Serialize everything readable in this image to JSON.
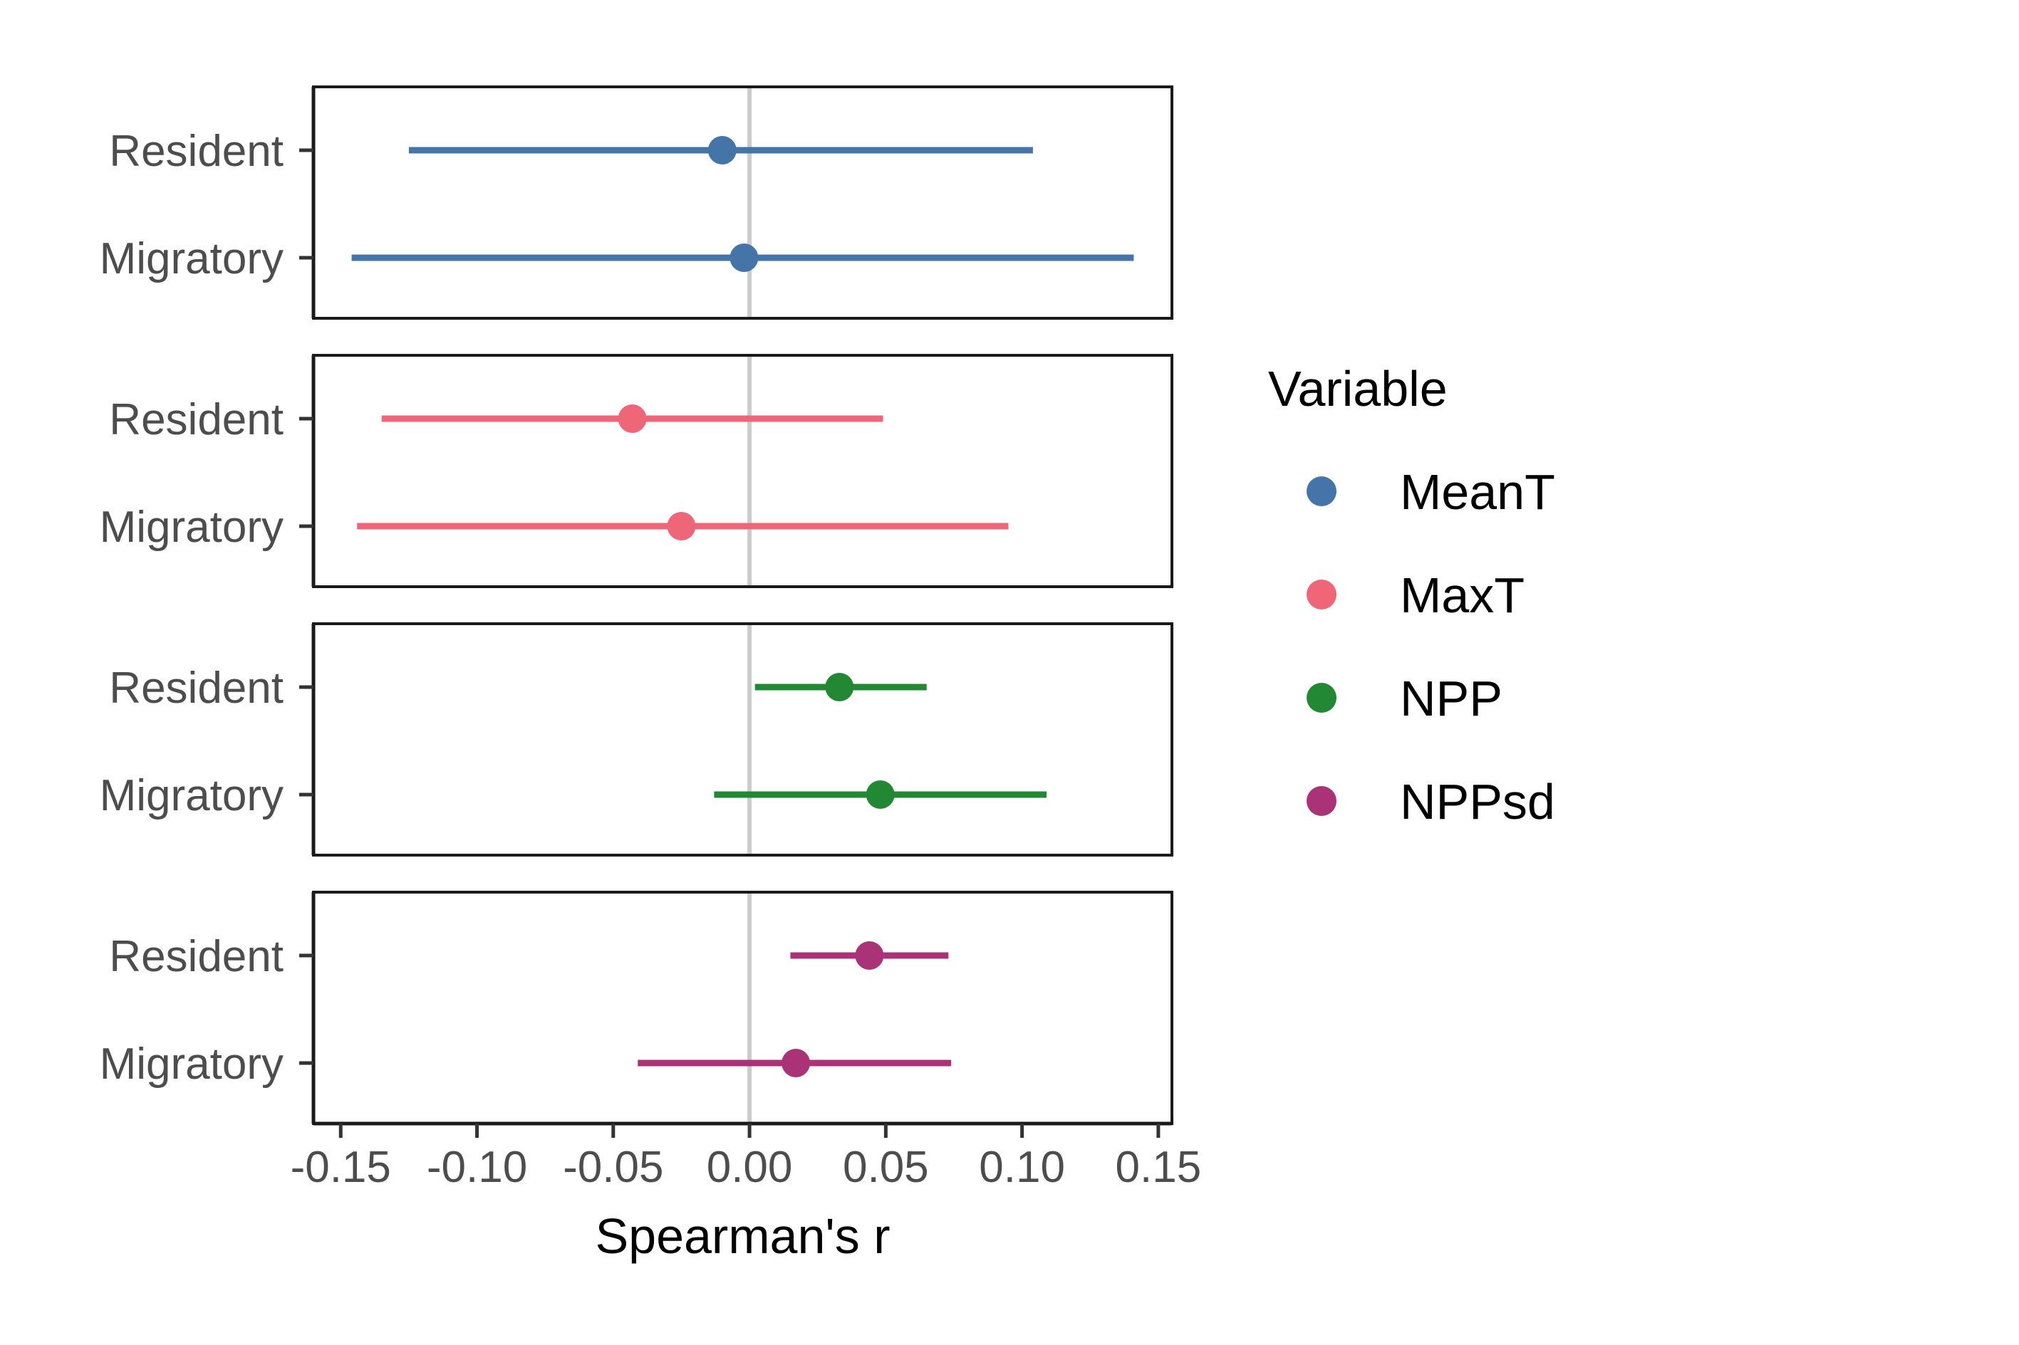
{
  "chart_data": {
    "type": "scatter",
    "subtype": "faceted point-range (dot-and-whisker)",
    "xlabel": "Spearman's r",
    "xlim": [
      -0.16,
      0.155
    ],
    "x_ticks": [
      -0.15,
      -0.1,
      -0.05,
      0.0,
      0.05,
      0.1,
      0.15
    ],
    "x_tick_labels": [
      "-0.15",
      "-0.10",
      "-0.05",
      "0.00",
      "0.05",
      "0.10",
      "0.15"
    ],
    "categories": [
      "Resident",
      "Migratory"
    ],
    "reference_line_x": 0,
    "grid": false,
    "legend": {
      "title": "Variable",
      "placement": "right",
      "entries": [
        "MeanT",
        "MaxT",
        "NPP",
        "NPPsd"
      ]
    },
    "series": [
      {
        "name": "MeanT",
        "color": "#4575a8",
        "points": [
          {
            "category": "Resident",
            "estimate": -0.01,
            "lower": -0.125,
            "upper": 0.104
          },
          {
            "category": "Migratory",
            "estimate": -0.002,
            "lower": -0.146,
            "upper": 0.141
          }
        ]
      },
      {
        "name": "MaxT",
        "color": "#ee6677",
        "points": [
          {
            "category": "Resident",
            "estimate": -0.043,
            "lower": -0.135,
            "upper": 0.049
          },
          {
            "category": "Migratory",
            "estimate": -0.025,
            "lower": -0.144,
            "upper": 0.095
          }
        ]
      },
      {
        "name": "NPP",
        "color": "#228833",
        "points": [
          {
            "category": "Resident",
            "estimate": 0.033,
            "lower": 0.002,
            "upper": 0.065
          },
          {
            "category": "Migratory",
            "estimate": 0.048,
            "lower": -0.013,
            "upper": 0.109
          }
        ]
      },
      {
        "name": "NPPsd",
        "color": "#aa3377",
        "points": [
          {
            "category": "Resident",
            "estimate": 0.044,
            "lower": 0.015,
            "upper": 0.073
          },
          {
            "category": "Migratory",
            "estimate": 0.017,
            "lower": -0.041,
            "upper": 0.074
          }
        ]
      }
    ]
  }
}
